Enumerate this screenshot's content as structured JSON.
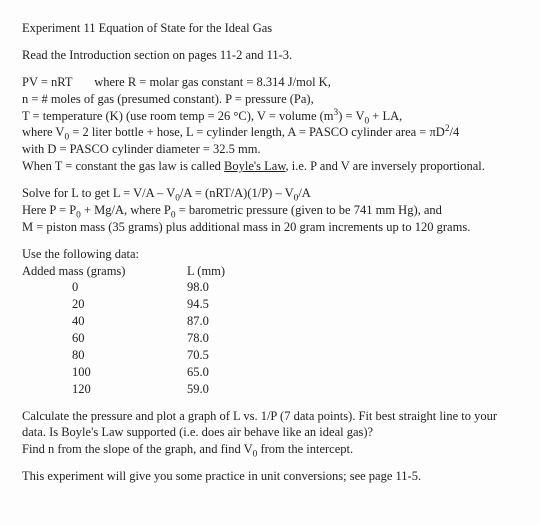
{
  "title": "Experiment 11  Equation of State for the Ideal Gas",
  "intro": "Read the Introduction section on pages 11-2 and 11-3.",
  "eq1_a": "PV = nRT",
  "eq1_b": "where R = molar gas constant = 8.314 J/mol K,",
  "line_n": "n = # moles of gas (presumed constant). P = pressure (Pa),",
  "line_T_a": "T = temperature (K) (use room temp = 26 °C), V = volume  (m",
  "line_T_b": ") = V",
  "line_T_c": " + LA,",
  "line_V0_a": "where V",
  "line_V0_b": " = 2 liter bottle + hose, L = cylinder length, A = PASCO cylinder area = πD",
  "line_V0_c": "/4",
  "line_D": "with D = PASCO cylinder diameter = 32.5 mm.",
  "line_boyle_a": "When T = constant the gas law is called ",
  "line_boyle_u": "Boyle's Law",
  "line_boyle_b": ", i.e. P and V are inversely proportional.",
  "solve_a": "Solve for L to get  L = V/A – V",
  "solve_b": "/A = (nRT/A)(1/P) – V",
  "solve_c": "/A",
  "hereP_a": "Here P = P",
  "hereP_b": " + Mg/A, where P",
  "hereP_c": " = barometric pressure (given to be 741 mm Hg), and",
  "line_M": "M = piston mass (35 grams) plus additional mass in 20 gram increments up to 120 grams.",
  "use_data": "Use the following data:",
  "head_mass": "Added mass (grams)",
  "head_len": "L (mm)",
  "rows": [
    {
      "m": "0",
      "l": "98.0"
    },
    {
      "m": "20",
      "l": "94.5"
    },
    {
      "m": "40",
      "l": "87.0"
    },
    {
      "m": "60",
      "l": "78.0"
    },
    {
      "m": "80",
      "l": "70.5"
    },
    {
      "m": "100",
      "l": "65.0"
    },
    {
      "m": "120",
      "l": "59.0"
    }
  ],
  "calc_a": "Calculate the pressure and plot a graph of L vs. 1/P (7 data points).  Fit best straight line to your data.  Is Boyle's Law supported (i.e. does air behave like an ideal gas)?",
  "calc_b_a": "Find n from the slope of the graph, and find V",
  "calc_b_b": " from the intercept.",
  "footer": "This experiment will give you some practice in unit conversions; see page 11-5."
}
